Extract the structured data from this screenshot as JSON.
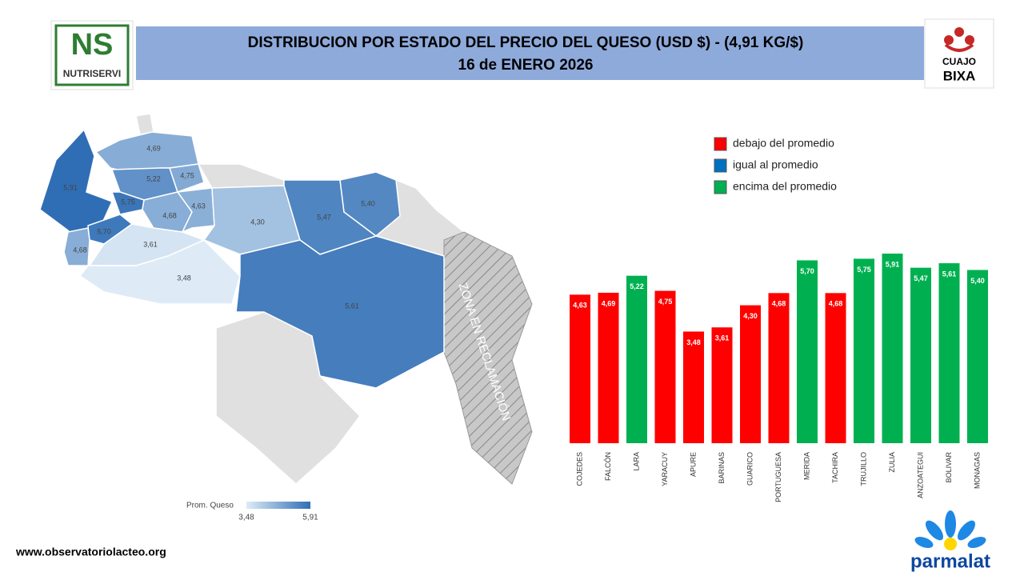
{
  "header": {
    "title": "DISTRIBUCION POR ESTADO DEL PRECIO DEL QUESO (USD $)  - (4,91 KG/$)",
    "subtitle": "16 de ENERO 2026"
  },
  "logos": {
    "left_mark": "NS",
    "left_name": "NUTRISERVI",
    "right_top": "CUAJO",
    "right_bottom": "BIXA",
    "bottom": "parmalat"
  },
  "footer": "www.observatoriolacteo.org",
  "chart_data": [
    {
      "type": "map",
      "zone_label": "ZONA EN RECLAMACIÓN",
      "values": [
        5.91,
        4.69,
        5.22,
        4.75,
        5.75,
        5.7,
        4.68,
        4.68,
        4.63,
        3.61,
        3.48,
        4.3,
        5.47,
        5.4,
        5.61
      ],
      "value_labels": [
        "5,91",
        "4,69",
        "5,22",
        "4,75",
        "5,75",
        "5,70",
        "4,68",
        "4,68",
        "4,63",
        "3,61",
        "3,48",
        "4,30",
        "5,47",
        "5,40",
        "5,61"
      ],
      "scale": {
        "title": "Prom. Queso",
        "range": [
          {
            "value": 3.48,
            "label": "3,48"
          },
          {
            "value": 5.91,
            "label": "5,91"
          }
        ],
        "colors": [
          "#deebf7",
          "#2f6eb5"
        ]
      }
    },
    {
      "type": "bar",
      "categories": [
        "COJEDES",
        "FALCÓN",
        "LARA",
        "YARACUY",
        "APURE",
        "BARINAS",
        "GUARICO",
        "PORTUGUESA",
        "MERIDA",
        "TACHIRA",
        "TRUJILLO",
        "ZULIA",
        "ANZOATEGUI",
        "BOLIVAR",
        "MONAGAS"
      ],
      "values": [
        4.63,
        4.69,
        5.22,
        4.75,
        3.48,
        3.61,
        4.3,
        4.68,
        5.7,
        4.68,
        5.75,
        5.91,
        5.47,
        5.61,
        5.4
      ],
      "value_labels": [
        "4,63",
        "4,69",
        "5,22",
        "4,75",
        "3,48",
        "3,61",
        "4,30",
        "4,68",
        "5,70",
        "4,68",
        "5,75",
        "5,91",
        "5,47",
        "5,61",
        "5,40"
      ],
      "colors": [
        "#ff0000",
        "#ff0000",
        "#00b050",
        "#ff0000",
        "#ff0000",
        "#ff0000",
        "#ff0000",
        "#ff0000",
        "#00b050",
        "#ff0000",
        "#00b050",
        "#00b050",
        "#00b050",
        "#00b050",
        "#00b050"
      ],
      "ylim": [
        0,
        6
      ],
      "legend": [
        {
          "label": "debajo del promedio",
          "color": "#ff0000"
        },
        {
          "label": "igual al promedio",
          "color": "#0070c0"
        },
        {
          "label": "encima del promedio",
          "color": "#00b050"
        }
      ]
    }
  ]
}
